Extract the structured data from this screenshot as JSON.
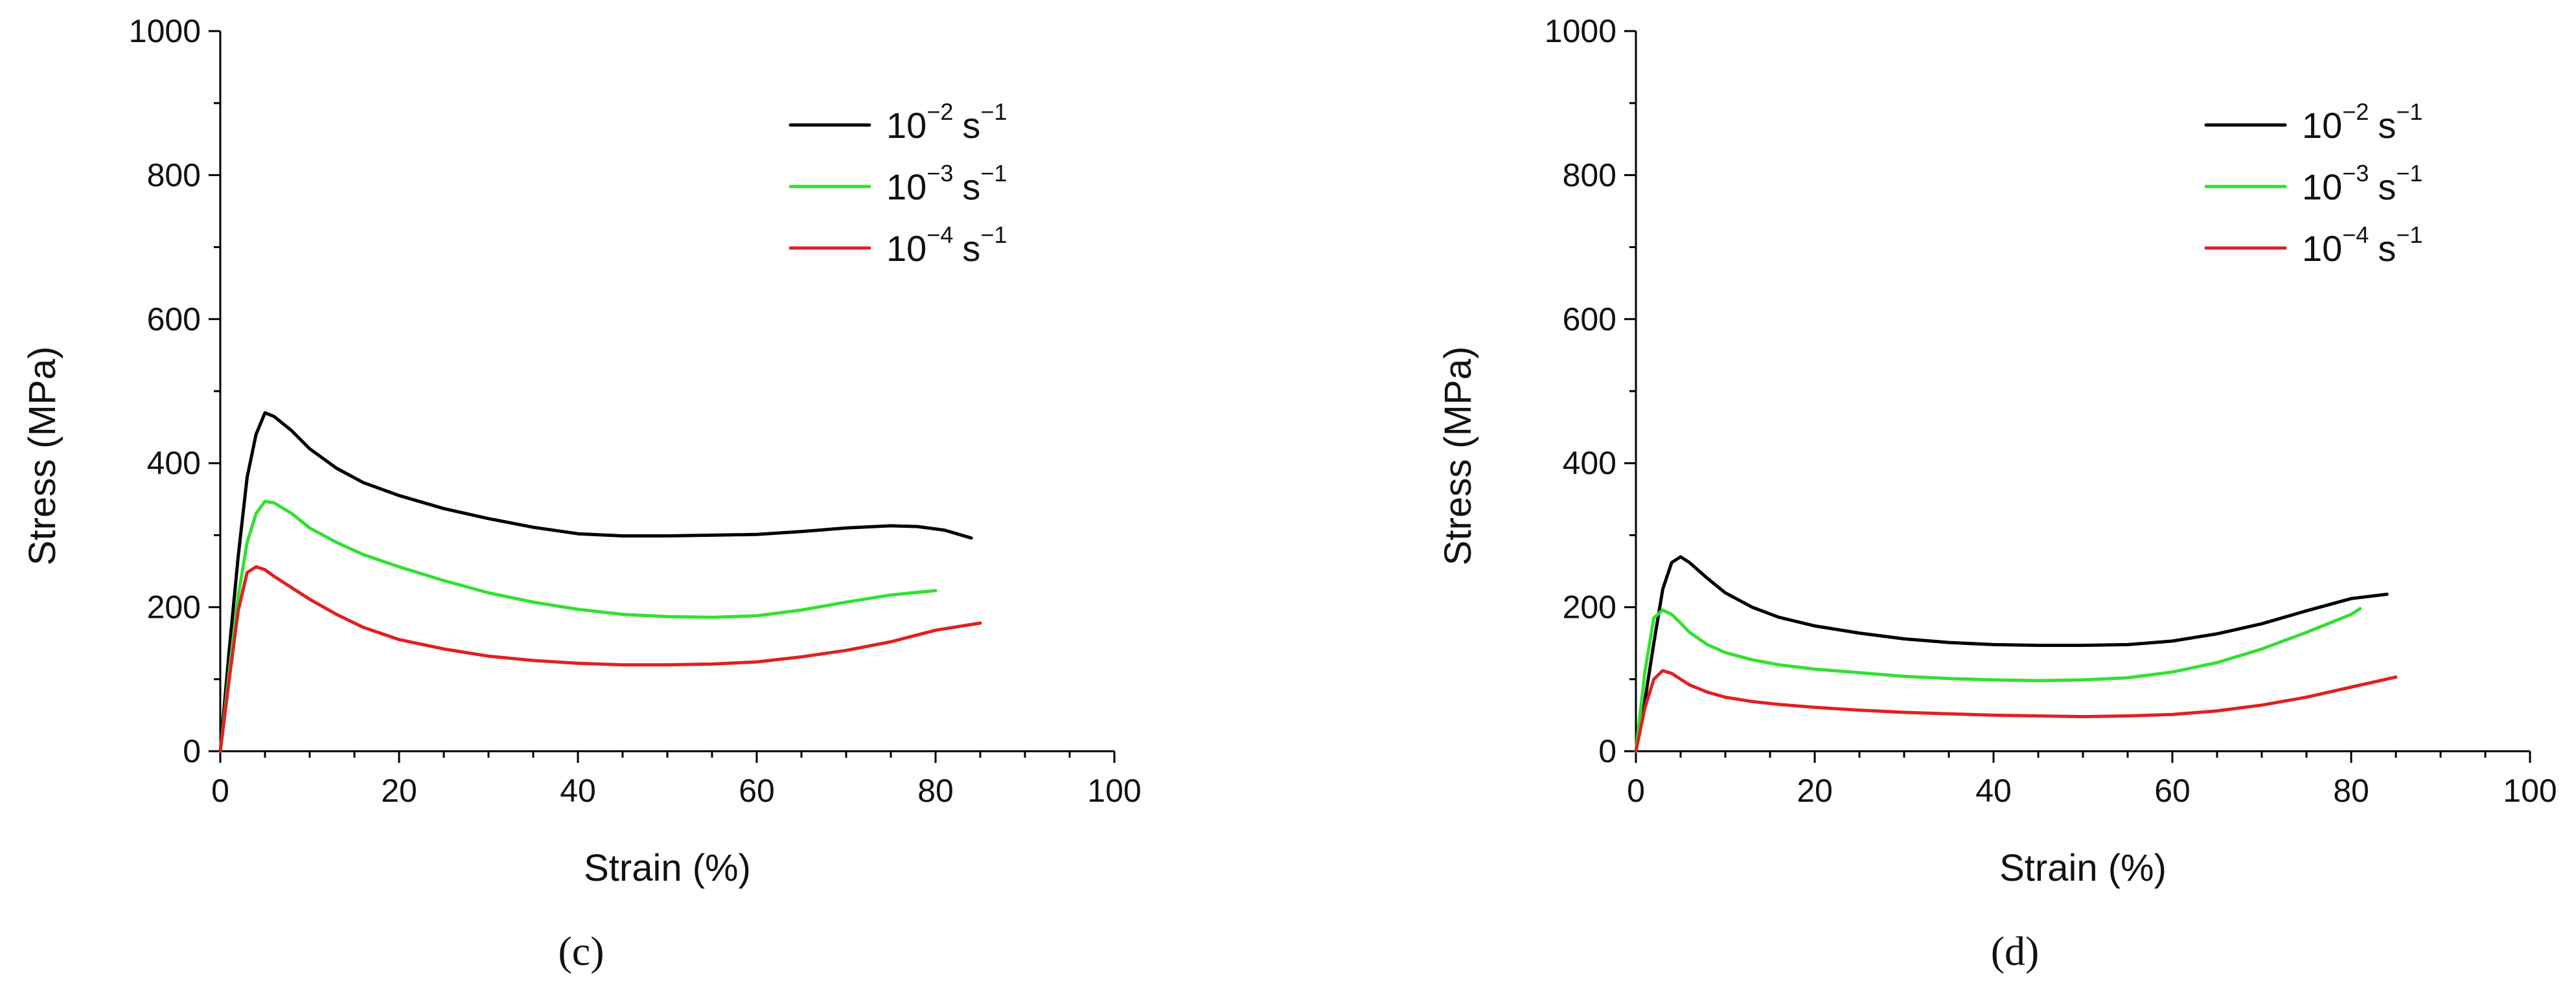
{
  "chart_data": [
    {
      "type": "line",
      "panel_label": "(c)",
      "xlabel": "Strain (%)",
      "ylabel": "Stress (MPa)",
      "xlim": [
        0,
        100
      ],
      "ylim": [
        0,
        1000
      ],
      "xticks": [
        0,
        20,
        40,
        60,
        80,
        100
      ],
      "yticks": [
        0,
        200,
        400,
        600,
        800,
        1000
      ],
      "x_minor_step": 5,
      "y_minor_step": 100,
      "legend_position": "top-right",
      "series": [
        {
          "name": "10−2 s−1",
          "base": "10",
          "exp1": "−2",
          "unit": "s",
          "exp2": "−1",
          "color": "#000000",
          "x": [
            0,
            1,
            2,
            3,
            4,
            5,
            6,
            8,
            10,
            13,
            16,
            20,
            25,
            30,
            35,
            40,
            45,
            50,
            55,
            60,
            65,
            70,
            75,
            78,
            81,
            84
          ],
          "y": [
            0,
            140,
            270,
            380,
            440,
            470,
            465,
            445,
            420,
            393,
            373,
            355,
            337,
            323,
            311,
            302,
            299,
            299,
            300,
            301,
            305,
            310,
            313,
            312,
            307,
            296
          ]
        },
        {
          "name": "10−3 s−1",
          "base": "10",
          "exp1": "−3",
          "unit": "s",
          "exp2": "−1",
          "color": "#33e033",
          "x": [
            0,
            1,
            2,
            3,
            4,
            5,
            6,
            8,
            10,
            13,
            16,
            20,
            25,
            30,
            35,
            40,
            45,
            50,
            55,
            60,
            65,
            70,
            75,
            80
          ],
          "y": [
            0,
            110,
            215,
            290,
            330,
            347,
            345,
            330,
            310,
            290,
            273,
            256,
            237,
            220,
            207,
            197,
            190,
            187,
            186,
            188,
            196,
            207,
            217,
            223
          ]
        },
        {
          "name": "10−4 s−1",
          "base": "10",
          "exp1": "−4",
          "unit": "s",
          "exp2": "−1",
          "color": "#e02020",
          "x": [
            0,
            1,
            2,
            3,
            4,
            5,
            6,
            8,
            10,
            13,
            16,
            20,
            25,
            30,
            35,
            40,
            45,
            50,
            55,
            60,
            65,
            70,
            75,
            80,
            85
          ],
          "y": [
            0,
            100,
            195,
            248,
            256,
            252,
            243,
            227,
            211,
            190,
            172,
            155,
            142,
            132,
            126,
            122,
            120,
            120,
            121,
            124,
            131,
            140,
            152,
            168,
            178
          ]
        }
      ]
    },
    {
      "type": "line",
      "panel_label": "(d)",
      "xlabel": "Strain (%)",
      "ylabel": "Stress (MPa)",
      "xlim": [
        0,
        100
      ],
      "ylim": [
        0,
        1000
      ],
      "xticks": [
        0,
        20,
        40,
        60,
        80,
        100
      ],
      "yticks": [
        0,
        200,
        400,
        600,
        800,
        1000
      ],
      "x_minor_step": 5,
      "y_minor_step": 100,
      "legend_position": "top-right",
      "series": [
        {
          "name": "10−2 s−1",
          "base": "10",
          "exp1": "−2",
          "unit": "s",
          "exp2": "−1",
          "color": "#000000",
          "x": [
            0,
            1,
            2,
            3,
            4,
            5,
            6,
            8,
            10,
            13,
            16,
            20,
            25,
            30,
            35,
            40,
            45,
            50,
            55,
            60,
            65,
            70,
            75,
            80,
            84
          ],
          "y": [
            0,
            70,
            150,
            225,
            262,
            270,
            262,
            240,
            220,
            200,
            186,
            174,
            164,
            156,
            151,
            148,
            147,
            147,
            148,
            153,
            163,
            177,
            195,
            212,
            218
          ]
        },
        {
          "name": "10−3 s−1",
          "base": "10",
          "exp1": "−3",
          "unit": "s",
          "exp2": "−1",
          "color": "#33e033",
          "x": [
            0,
            1,
            2,
            3,
            4,
            5,
            6,
            8,
            10,
            13,
            16,
            20,
            25,
            30,
            35,
            40,
            45,
            50,
            55,
            60,
            65,
            70,
            75,
            80,
            81
          ],
          "y": [
            0,
            110,
            185,
            196,
            190,
            178,
            165,
            148,
            137,
            127,
            120,
            114,
            109,
            104,
            101,
            99,
            98,
            99,
            102,
            110,
            123,
            142,
            165,
            190,
            198
          ]
        },
        {
          "name": "10−4 s−1",
          "base": "10",
          "exp1": "−4",
          "unit": "s",
          "exp2": "−1",
          "color": "#e02020",
          "x": [
            0,
            1,
            2,
            3,
            4,
            5,
            6,
            8,
            10,
            13,
            16,
            20,
            25,
            30,
            35,
            40,
            45,
            50,
            55,
            60,
            65,
            70,
            75,
            80,
            85
          ],
          "y": [
            0,
            60,
            100,
            112,
            108,
            100,
            92,
            82,
            75,
            69,
            65,
            61,
            57,
            54,
            52,
            50,
            49,
            48,
            49,
            51,
            56,
            64,
            75,
            89,
            103
          ]
        }
      ]
    }
  ]
}
